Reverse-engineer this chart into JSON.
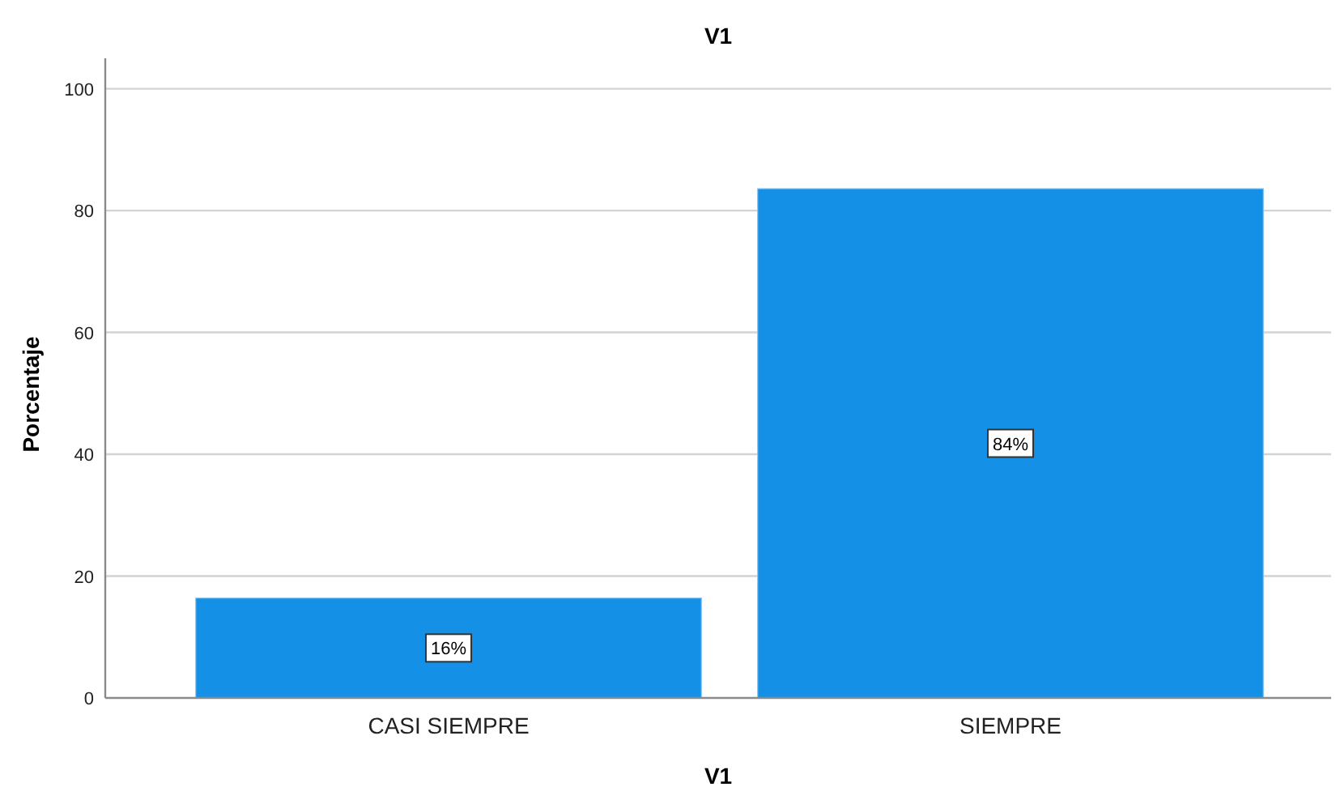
{
  "chart_data": {
    "type": "bar",
    "title": "V1",
    "xlabel": "V1",
    "ylabel": "Porcentaje",
    "categories": [
      "CASI SIEMPRE",
      "SIEMPRE"
    ],
    "values": [
      16.4,
      83.6
    ],
    "color": "#1491e6",
    "value_labels": [
      "16%",
      "84%"
    ],
    "ylim": [
      0,
      105
    ],
    "yticks": [
      0,
      20,
      40,
      60,
      80,
      100
    ],
    "grid": "y"
  }
}
